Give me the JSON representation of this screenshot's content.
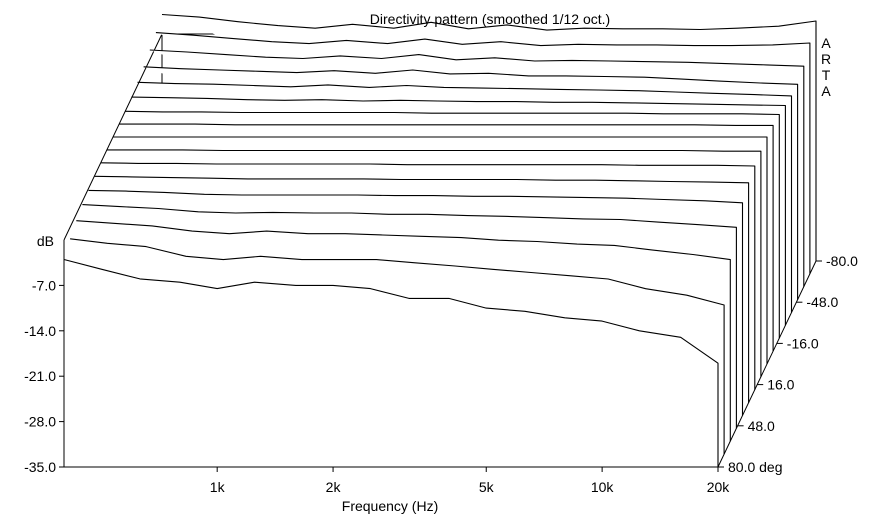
{
  "chart_data": {
    "type": "line",
    "title": "Directivity pattern (smoothed 1/12 oct.)",
    "brand_label": [
      "A",
      "R",
      "T",
      "A"
    ],
    "xlabel": "Frequency (Hz)",
    "ylabel": "dB",
    "zlabel_unit": "deg",
    "xscale": "log",
    "xlim": [
      400,
      20000
    ],
    "ylim": [
      -35,
      0
    ],
    "zlim": [
      80,
      -80
    ],
    "x_ticks": [
      {
        "value": 1000,
        "label": "1k"
      },
      {
        "value": 2000,
        "label": "2k"
      },
      {
        "value": 5000,
        "label": "5k"
      },
      {
        "value": 10000,
        "label": "10k"
      },
      {
        "value": 20000,
        "label": "20k"
      }
    ],
    "y_ticks": [
      {
        "value": -7,
        "label": "-7.0"
      },
      {
        "value": -14,
        "label": "-14.0"
      },
      {
        "value": -21,
        "label": "-21.0"
      },
      {
        "value": -28,
        "label": "-28.0"
      },
      {
        "value": -35,
        "label": "-35.0"
      }
    ],
    "z_ticks": [
      {
        "value": 80,
        "label": "80.0 deg"
      },
      {
        "value": 48,
        "label": "48.0"
      },
      {
        "value": 16,
        "label": "16.0"
      },
      {
        "value": -16,
        "label": "-16.0"
      },
      {
        "value": -48,
        "label": "-48.0"
      },
      {
        "value": -80,
        "label": "-80.0"
      }
    ],
    "x": [
      400,
      500,
      630,
      800,
      1000,
      1250,
      1600,
      2000,
      2500,
      3150,
      4000,
      5000,
      6300,
      8000,
      10000,
      12500,
      16000,
      20000
    ],
    "series": [
      {
        "angle": 80,
        "values": [
          -3.0,
          -4.5,
          -6.0,
          -6.5,
          -7.5,
          -6.5,
          -7.0,
          -7.0,
          -7.5,
          -9.0,
          -9.0,
          -10.5,
          -11.0,
          -12.0,
          -12.5,
          -14.0,
          -15.0,
          -19.0
        ]
      },
      {
        "angle": 70,
        "values": [
          -1.8,
          -2.5,
          -3.0,
          -4.5,
          -5.0,
          -4.5,
          -5.0,
          -5.0,
          -5.0,
          -5.5,
          -6.0,
          -6.5,
          -7.0,
          -7.5,
          -8.0,
          -9.5,
          -10.5,
          -12.0
        ]
      },
      {
        "angle": 60,
        "values": [
          -1.0,
          -1.4,
          -1.8,
          -2.6,
          -3.0,
          -2.6,
          -3.0,
          -3.0,
          -3.2,
          -3.4,
          -3.6,
          -4.0,
          -4.2,
          -4.6,
          -4.8,
          -5.5,
          -6.2,
          -7.0
        ]
      },
      {
        "angle": 50,
        "values": [
          -0.5,
          -0.8,
          -1.1,
          -1.6,
          -1.8,
          -1.7,
          -1.8,
          -1.8,
          -2.0,
          -2.0,
          -2.2,
          -2.3,
          -2.5,
          -2.7,
          -2.8,
          -3.2,
          -3.6,
          -4.0
        ]
      },
      {
        "angle": 40,
        "values": [
          -0.3,
          -0.4,
          -0.6,
          -0.9,
          -1.0,
          -1.0,
          -1.0,
          -1.0,
          -1.1,
          -1.1,
          -1.2,
          -1.2,
          -1.3,
          -1.4,
          -1.5,
          -1.7,
          -1.9,
          -2.2
        ]
      },
      {
        "angle": 30,
        "values": [
          -0.1,
          -0.2,
          -0.3,
          -0.4,
          -0.5,
          -0.5,
          -0.5,
          -0.5,
          -0.6,
          -0.6,
          -0.6,
          -0.6,
          -0.7,
          -0.7,
          -0.8,
          -0.9,
          -1.0,
          -1.1
        ]
      },
      {
        "angle": 20,
        "values": [
          0,
          -0.1,
          -0.1,
          -0.2,
          -0.2,
          -0.2,
          -0.2,
          -0.2,
          -0.3,
          -0.3,
          -0.3,
          -0.3,
          -0.3,
          -0.3,
          -0.4,
          -0.4,
          -0.4,
          -0.5
        ]
      },
      {
        "angle": 10,
        "values": [
          0,
          0,
          0,
          -0.1,
          -0.1,
          -0.1,
          -0.1,
          -0.1,
          -0.1,
          -0.1,
          -0.1,
          -0.1,
          -0.1,
          -0.1,
          -0.1,
          -0.1,
          -0.2,
          -0.2
        ]
      },
      {
        "angle": 0,
        "values": [
          0,
          0,
          0,
          0,
          0,
          0,
          0,
          0,
          0,
          0,
          0,
          0,
          0,
          0,
          0,
          0,
          0,
          0
        ]
      },
      {
        "angle": -10,
        "values": [
          0,
          0,
          0,
          -0.1,
          -0.1,
          -0.1,
          -0.1,
          -0.1,
          -0.1,
          -0.1,
          -0.1,
          -0.1,
          -0.1,
          -0.1,
          -0.1,
          -0.1,
          -0.2,
          -0.2
        ]
      },
      {
        "angle": -20,
        "values": [
          0,
          -0.1,
          -0.1,
          -0.2,
          -0.2,
          -0.2,
          -0.2,
          -0.2,
          -0.3,
          -0.3,
          -0.3,
          -0.3,
          -0.3,
          -0.3,
          -0.4,
          -0.4,
          -0.4,
          -0.5
        ]
      },
      {
        "angle": -30,
        "values": [
          0.2,
          0.1,
          0.0,
          -0.2,
          -0.3,
          -0.2,
          -0.4,
          -0.3,
          -0.4,
          -0.5,
          -0.5,
          -0.6,
          -0.6,
          -0.7,
          -0.8,
          -0.9,
          -1.0,
          -1.1
        ]
      },
      {
        "angle": -40,
        "values": [
          0.5,
          0.3,
          0.2,
          0.0,
          -0.2,
          0.1,
          -0.3,
          0.0,
          -0.3,
          -0.4,
          -0.5,
          -0.6,
          -0.7,
          -0.8,
          -1.0,
          -1.2,
          -1.4,
          -1.6
        ]
      },
      {
        "angle": -50,
        "values": [
          0.9,
          0.6,
          0.4,
          0.2,
          0.0,
          0.3,
          -0.1,
          0.4,
          -0.2,
          -0.1,
          -0.5,
          -0.5,
          -0.6,
          -0.7,
          -1.0,
          -1.3,
          -1.6,
          -1.8
        ]
      },
      {
        "angle": -60,
        "values": [
          1.5,
          1.2,
          0.8,
          0.4,
          0.2,
          0.6,
          0.2,
          0.8,
          0.0,
          0.3,
          -0.2,
          -0.1,
          -0.2,
          -0.3,
          -0.4,
          -0.6,
          -0.8,
          -1.0
        ]
      },
      {
        "angle": -70,
        "values": [
          2.2,
          1.8,
          1.3,
          0.8,
          0.5,
          1.0,
          0.5,
          1.2,
          0.4,
          0.8,
          0.2,
          0.4,
          0.3,
          0.3,
          0.2,
          0.2,
          0.3,
          0.6
        ]
      },
      {
        "angle": -80,
        "values": [
          3.0,
          2.6,
          1.9,
          1.3,
          0.9,
          1.5,
          0.9,
          1.8,
          0.8,
          1.4,
          0.6,
          0.9,
          0.8,
          0.8,
          0.7,
          0.9,
          1.2,
          2.0
        ]
      }
    ]
  }
}
